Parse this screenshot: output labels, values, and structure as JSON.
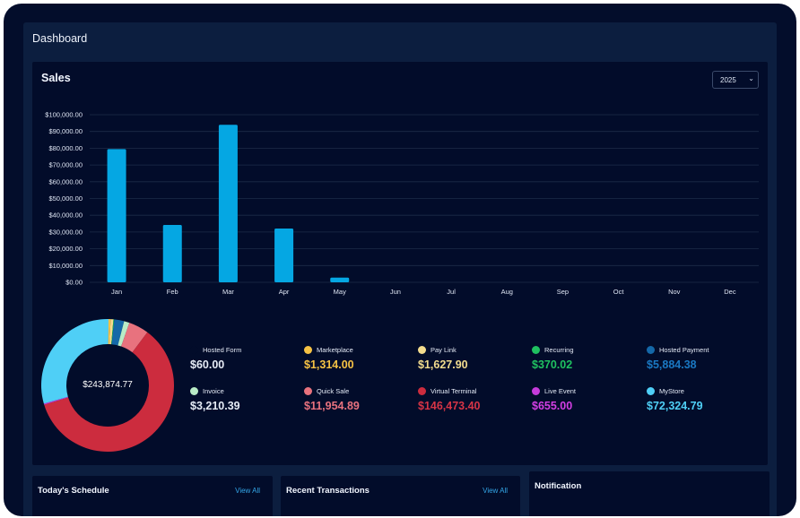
{
  "header": {
    "title": "Dashboard"
  },
  "sales": {
    "title": "Sales",
    "year_select": {
      "value": "2025",
      "icon": "chevron-down-icon"
    }
  },
  "chart_data": {
    "type": "bar",
    "title": "Sales",
    "categories": [
      "Jan",
      "Feb",
      "Mar",
      "Apr",
      "May",
      "Jun",
      "Jul",
      "Aug",
      "Sep",
      "Oct",
      "Nov",
      "Dec"
    ],
    "values": [
      79500,
      34200,
      94000,
      32100,
      2800,
      0,
      0,
      0,
      0,
      0,
      0,
      0
    ],
    "ylim": [
      0,
      100000
    ],
    "ytick_labels": [
      "$0.00",
      "$10,000.00",
      "$20,000.00",
      "$30,000.00",
      "$40,000.00",
      "$50,000.00",
      "$60,000.00",
      "$70,000.00",
      "$80,000.00",
      "$90,000.00",
      "$100,000.00"
    ],
    "bar_color": "#05a7e3",
    "grid": true
  },
  "donut": {
    "total": "$243,874.77",
    "segments": [
      {
        "name": "Hosted Form",
        "value": 60.0,
        "color": "#ffffff"
      },
      {
        "name": "Marketplace",
        "value": 1314.0,
        "color": "#f6c244"
      },
      {
        "name": "Pay Link",
        "value": 1627.9,
        "color": "#f3dc8e"
      },
      {
        "name": "Recurring",
        "value": 370.02,
        "color": "#1fc160"
      },
      {
        "name": "Hosted Payment",
        "value": 5884.38,
        "color": "#1468a8"
      },
      {
        "name": "Invoice",
        "value": 3210.39,
        "color": "#b9ecc6"
      },
      {
        "name": "Quick Sale",
        "value": 11954.89,
        "color": "#e8727e"
      },
      {
        "name": "Virtual Terminal",
        "value": 146473.4,
        "color": "#cc2c3e"
      },
      {
        "name": "Live Event",
        "value": 655.0,
        "color": "#c53bdb"
      },
      {
        "name": "MyStore",
        "value": 72324.79,
        "color": "#4fcff6"
      }
    ]
  },
  "legend": [
    {
      "label": "Hosted Form",
      "value": "$60.00",
      "dot": "#020c2a",
      "text": "#e6ebf5"
    },
    {
      "label": "Marketplace",
      "value": "$1,314.00",
      "dot": "#f6c244",
      "text": "#f6c244"
    },
    {
      "label": "Pay Link",
      "value": "$1,627.90",
      "dot": "#f3dc8e",
      "text": "#f3dc8e"
    },
    {
      "label": "Recurring",
      "value": "$370.02",
      "dot": "#1fc160",
      "text": "#1fc160"
    },
    {
      "label": "Hosted Payment",
      "value": "$5,884.38",
      "dot": "#1468a8",
      "text": "#1a78c2"
    },
    {
      "label": "Invoice",
      "value": "$3,210.39",
      "dot": "#b9ecc6",
      "text": "#e6ebf5"
    },
    {
      "label": "Quick Sale",
      "value": "$11,954.89",
      "dot": "#e8727e",
      "text": "#e8727e"
    },
    {
      "label": "Virtual Terminal",
      "value": "$146,473.40",
      "dot": "#cc2c3e",
      "text": "#d63446"
    },
    {
      "label": "Live Event",
      "value": "$655.00",
      "dot": "#c53bdb",
      "text": "#d33fe3"
    },
    {
      "label": "MyStore",
      "value": "$72,324.79",
      "dot": "#4fcff6",
      "text": "#4fcff6"
    }
  ],
  "cards": {
    "schedule": {
      "title": "Today's Schedule",
      "link": "View All"
    },
    "transactions": {
      "title": "Recent Transactions",
      "link": "View All"
    },
    "notification": {
      "title": "Notification"
    }
  }
}
